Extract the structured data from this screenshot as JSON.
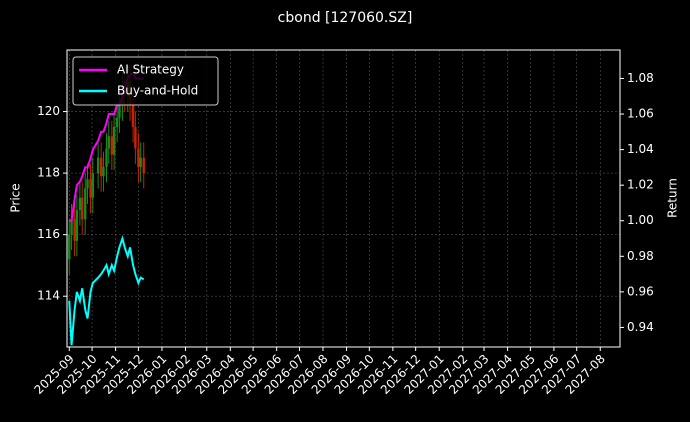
{
  "chart_data": {
    "type": "candlestick",
    "title": "cbond [127060.SZ]",
    "y_label": "Price",
    "y2_label": "Return",
    "x": [
      "2025-09-01",
      "2025-09-04",
      "2025-09-08",
      "2025-09-11",
      "2025-09-15",
      "2025-09-18",
      "2025-09-22",
      "2025-09-25",
      "2025-09-29",
      "2025-10-02",
      "2025-10-09",
      "2025-10-13",
      "2025-10-16",
      "2025-10-20",
      "2025-10-23",
      "2025-10-27",
      "2025-10-30",
      "2025-11-03",
      "2025-11-06",
      "2025-11-10",
      "2025-11-13",
      "2025-11-17",
      "2025-11-20",
      "2025-11-24",
      "2025-11-27",
      "2025-12-01",
      "2025-12-04",
      "2025-12-08"
    ],
    "candles": {
      "up_color": "#1a8a1a",
      "down_color": "#cc2200",
      "open": [
        115.2,
        116,
        116.5,
        115.8,
        116.8,
        117.2,
        116.5,
        117.5,
        117.8,
        117.2,
        118,
        118.5,
        117.9,
        118.2,
        118.8,
        119.2,
        118.6,
        119.5,
        119.8,
        120.2,
        120.8,
        120.5,
        121,
        120.2,
        119.5,
        118.8,
        118.2,
        118.5
      ],
      "high": [
        116.5,
        117,
        117,
        117.3,
        117.7,
        117.7,
        118,
        118.3,
        118.3,
        118.5,
        119,
        119,
        118.7,
        119.3,
        119.7,
        119.7,
        120,
        120.3,
        120.7,
        121.3,
        121.3,
        121.5,
        121.5,
        120.7,
        120,
        119.3,
        119,
        119
      ],
      "low": [
        114.7,
        115.5,
        115.3,
        115.3,
        116.3,
        116,
        116,
        117,
        116.7,
        116.7,
        117.5,
        117.4,
        117.4,
        117.7,
        118.3,
        118.1,
        118.1,
        119,
        119.3,
        119.7,
        120,
        120,
        119.7,
        119,
        118.3,
        117.7,
        117.7,
        117.5
      ],
      "close": [
        116,
        116.5,
        115.8,
        116.8,
        117.2,
        116.5,
        117.5,
        117.8,
        117.2,
        118,
        118.5,
        117.9,
        118.2,
        118.8,
        119.2,
        118.6,
        119.5,
        119.8,
        120.2,
        120.8,
        120.5,
        121,
        120.2,
        119.5,
        118.8,
        118.2,
        118.5,
        118.0
      ]
    },
    "series": [
      {
        "name": "AI Strategy",
        "color": "#ff00ff",
        "axis": "y2",
        "values": [
          1.0,
          1.0,
          1.012,
          1.02,
          1.022,
          1.025,
          1.03,
          1.03,
          1.035,
          1.04,
          1.045,
          1.05,
          1.05,
          1.055,
          1.06,
          1.06,
          1.06,
          1.065,
          1.065,
          1.07,
          1.075,
          1.08,
          1.082,
          1.083,
          1.08,
          1.08,
          1.08,
          1.08
        ]
      },
      {
        "name": "Buy-and-Hold",
        "color": "#00ffff",
        "axis": "y2",
        "values": [
          0.955,
          0.93,
          0.95,
          0.96,
          0.955,
          0.962,
          0.95,
          0.945,
          0.96,
          0.965,
          0.968,
          0.97,
          0.972,
          0.975,
          0.97,
          0.975,
          0.972,
          0.98,
          0.985,
          0.99,
          0.985,
          0.98,
          0.985,
          0.975,
          0.97,
          0.965,
          0.968,
          0.967
        ]
      }
    ],
    "xlim": [
      "2025-08-29",
      "2027-08-27"
    ],
    "xticks": [
      {
        "value": "2025-09-01",
        "label": "2025-09"
      },
      {
        "value": "2025-10-01",
        "label": "2025-10"
      },
      {
        "value": "2025-11-01",
        "label": "2025-11"
      },
      {
        "value": "2025-12-01",
        "label": "2025-12"
      },
      {
        "value": "2026-01-01",
        "label": "2026-01"
      },
      {
        "value": "2026-02-01",
        "label": "2026-02"
      },
      {
        "value": "2026-03-01",
        "label": "2026-03"
      },
      {
        "value": "2026-04-01",
        "label": "2026-04"
      },
      {
        "value": "2026-05-01",
        "label": "2026-05"
      },
      {
        "value": "2026-06-01",
        "label": "2026-06"
      },
      {
        "value": "2026-07-01",
        "label": "2026-07"
      },
      {
        "value": "2026-08-01",
        "label": "2026-08"
      },
      {
        "value": "2026-09-01",
        "label": "2026-09"
      },
      {
        "value": "2026-10-01",
        "label": "2026-10"
      },
      {
        "value": "2026-11-01",
        "label": "2026-11"
      },
      {
        "value": "2026-12-01",
        "label": "2026-12"
      },
      {
        "value": "2027-01-01",
        "label": "2027-01"
      },
      {
        "value": "2027-02-01",
        "label": "2027-02"
      },
      {
        "value": "2027-03-01",
        "label": "2027-03"
      },
      {
        "value": "2027-04-01",
        "label": "2027-04"
      },
      {
        "value": "2027-05-01",
        "label": "2027-05"
      },
      {
        "value": "2027-06-01",
        "label": "2027-06"
      },
      {
        "value": "2027-07-01",
        "label": "2027-07"
      },
      {
        "value": "2027-08-01",
        "label": "2027-08"
      }
    ],
    "ylim": [
      112.35,
      122.0
    ],
    "yticks": [
      114,
      116,
      118,
      120
    ],
    "y2lim": [
      0.929,
      1.096
    ],
    "y2ticks": [
      0.94,
      0.96,
      0.98,
      {
        "value": 1.0,
        "label": "1.00"
      },
      1.02,
      1.04,
      1.06,
      1.08
    ],
    "grid": true,
    "legend": "upper-left"
  }
}
